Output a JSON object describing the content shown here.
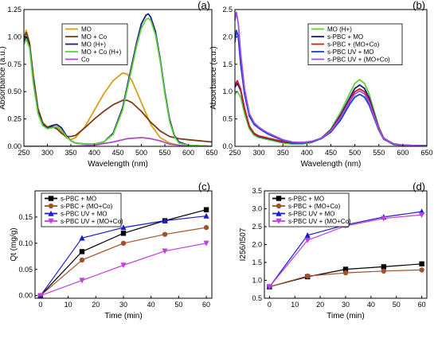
{
  "chart_data": [
    {
      "type": "line",
      "panel_label": "(a)",
      "xlabel": "Wavelength (nm)",
      "ylabel": "Absorbance (a.u.)",
      "xlim": [
        250,
        650
      ],
      "ylim": [
        0,
        1.25
      ],
      "xticks": [
        250,
        300,
        350,
        400,
        450,
        500,
        550,
        600,
        650
      ],
      "yticks": [
        0.0,
        0.25,
        0.5,
        0.75,
        1.0,
        1.25
      ],
      "ytick_labels": [
        "0.00",
        "0.25",
        "0.50",
        "0.75",
        "1.00",
        "1.25"
      ],
      "grid": false,
      "legend_position": "top-left",
      "series": [
        {
          "name": "MO",
          "color": "#d4a017",
          "marker": "none",
          "x": [
            250,
            255,
            262,
            270,
            280,
            290,
            300,
            310,
            320,
            330,
            340,
            350,
            360,
            380,
            400,
            420,
            440,
            460,
            470,
            480,
            500,
            520,
            540,
            560,
            580,
            600,
            650
          ],
          "y": [
            1.0,
            1.06,
            0.95,
            0.65,
            0.35,
            0.22,
            0.18,
            0.19,
            0.17,
            0.13,
            0.08,
            0.06,
            0.08,
            0.18,
            0.33,
            0.48,
            0.6,
            0.67,
            0.66,
            0.6,
            0.4,
            0.2,
            0.08,
            0.03,
            0.01,
            0.0,
            0.0
          ]
        },
        {
          "name": "MO + Co",
          "color": "#7a3b1e",
          "marker": "none",
          "x": [
            250,
            255,
            262,
            270,
            280,
            290,
            300,
            310,
            320,
            330,
            340,
            350,
            360,
            380,
            400,
            420,
            440,
            460,
            470,
            480,
            500,
            520,
            540,
            560,
            580,
            600,
            650
          ],
          "y": [
            0.98,
            1.04,
            0.94,
            0.64,
            0.34,
            0.21,
            0.17,
            0.18,
            0.16,
            0.12,
            0.09,
            0.09,
            0.1,
            0.17,
            0.25,
            0.32,
            0.38,
            0.42,
            0.42,
            0.4,
            0.32,
            0.22,
            0.14,
            0.09,
            0.07,
            0.06,
            0.04
          ]
        },
        {
          "name": "MO (H+)",
          "color": "#1a1a8c",
          "marker": "none",
          "x": [
            250,
            255,
            262,
            270,
            280,
            290,
            300,
            310,
            320,
            330,
            340,
            350,
            360,
            380,
            400,
            420,
            440,
            460,
            480,
            490,
            500,
            510,
            515,
            520,
            530,
            540,
            550,
            560,
            570,
            580,
            600,
            650
          ],
          "y": [
            0.95,
            1.0,
            0.92,
            0.6,
            0.32,
            0.2,
            0.17,
            0.19,
            0.2,
            0.17,
            0.1,
            0.05,
            0.03,
            0.02,
            0.02,
            0.04,
            0.12,
            0.35,
            0.75,
            0.95,
            1.12,
            1.2,
            1.21,
            1.18,
            1.05,
            0.8,
            0.5,
            0.25,
            0.1,
            0.04,
            0.01,
            0.0
          ]
        },
        {
          "name": "MO + Co (H+)",
          "color": "#5dcf3c",
          "marker": "none",
          "x": [
            250,
            255,
            262,
            270,
            280,
            290,
            300,
            310,
            320,
            330,
            340,
            350,
            360,
            380,
            400,
            420,
            440,
            460,
            480,
            490,
            500,
            510,
            515,
            520,
            530,
            540,
            550,
            560,
            570,
            580,
            600,
            650
          ],
          "y": [
            0.93,
            0.98,
            0.9,
            0.58,
            0.3,
            0.19,
            0.16,
            0.17,
            0.18,
            0.15,
            0.09,
            0.05,
            0.03,
            0.02,
            0.02,
            0.04,
            0.11,
            0.33,
            0.72,
            0.92,
            1.08,
            1.16,
            1.17,
            1.15,
            1.02,
            0.78,
            0.48,
            0.23,
            0.09,
            0.03,
            0.01,
            0.0
          ]
        },
        {
          "name": "Co",
          "color": "#b04cc8",
          "marker": "none",
          "x": [
            250,
            300,
            350,
            400,
            440,
            470,
            500,
            520,
            540,
            560,
            580,
            600,
            650
          ],
          "y": [
            0.0,
            0.0,
            0.0,
            0.01,
            0.04,
            0.07,
            0.08,
            0.07,
            0.05,
            0.02,
            0.01,
            0.0,
            0.0
          ]
        }
      ]
    },
    {
      "type": "line",
      "panel_label": "(b)",
      "xlabel": "Wavelength (nm)",
      "ylabel": "Absorbance (a.u.)",
      "xlim": [
        250,
        650
      ],
      "ylim": [
        0,
        2.5
      ],
      "xticks": [
        250,
        300,
        350,
        400,
        450,
        500,
        550,
        600,
        650
      ],
      "yticks": [
        0.0,
        0.5,
        1.0,
        1.5,
        2.0,
        2.5
      ],
      "ytick_labels": [
        "0.0",
        "0.5",
        "1.0",
        "1.5",
        "2.0",
        "2.5"
      ],
      "grid": false,
      "legend_position": "top-right",
      "series": [
        {
          "name": "MO (H+)",
          "color": "#5dcf3c",
          "marker": "none",
          "x": [
            250,
            255,
            262,
            270,
            280,
            290,
            300,
            310,
            320,
            330,
            350,
            370,
            390,
            410,
            430,
            450,
            470,
            490,
            500,
            510,
            520,
            530,
            540,
            550,
            560,
            580,
            600,
            650
          ],
          "y": [
            0.95,
            1.0,
            0.9,
            0.6,
            0.32,
            0.2,
            0.16,
            0.14,
            0.12,
            0.1,
            0.06,
            0.04,
            0.04,
            0.07,
            0.15,
            0.32,
            0.62,
            0.98,
            1.15,
            1.22,
            1.15,
            0.95,
            0.65,
            0.35,
            0.15,
            0.03,
            0.01,
            0.0
          ]
        },
        {
          "name": "s-PBC + MO",
          "color": "#1a1a8c",
          "marker": "none",
          "x": [
            250,
            255,
            262,
            270,
            280,
            290,
            300,
            310,
            320,
            330,
            350,
            370,
            390,
            410,
            430,
            450,
            470,
            490,
            500,
            510,
            520,
            530,
            540,
            550,
            560,
            580,
            600,
            650
          ],
          "y": [
            1.08,
            1.15,
            1.02,
            0.68,
            0.36,
            0.23,
            0.18,
            0.16,
            0.14,
            0.12,
            0.08,
            0.06,
            0.06,
            0.08,
            0.15,
            0.3,
            0.57,
            0.9,
            1.06,
            1.12,
            1.06,
            0.88,
            0.6,
            0.33,
            0.15,
            0.04,
            0.02,
            0.01
          ]
        },
        {
          "name": "s-PBC + (MO+Co)",
          "color": "#d02020",
          "marker": "none",
          "x": [
            250,
            255,
            262,
            270,
            280,
            290,
            300,
            310,
            320,
            330,
            350,
            370,
            390,
            410,
            430,
            450,
            470,
            490,
            500,
            510,
            520,
            530,
            540,
            550,
            560,
            580,
            600,
            650
          ],
          "y": [
            1.12,
            1.2,
            1.05,
            0.7,
            0.37,
            0.24,
            0.19,
            0.17,
            0.15,
            0.13,
            0.09,
            0.07,
            0.07,
            0.09,
            0.15,
            0.29,
            0.54,
            0.86,
            1.0,
            1.05,
            1.0,
            0.83,
            0.57,
            0.32,
            0.15,
            0.05,
            0.02,
            0.01
          ]
        },
        {
          "name": "s-PBC UV + MO",
          "color": "#1a3ad8",
          "marker": "none",
          "x": [
            250,
            253,
            257,
            262,
            270,
            280,
            290,
            300,
            310,
            320,
            330,
            350,
            370,
            390,
            410,
            430,
            450,
            470,
            490,
            500,
            510,
            520,
            530,
            540,
            550,
            560,
            580,
            600,
            650
          ],
          "y": [
            1.9,
            2.12,
            2.0,
            1.5,
            0.95,
            0.55,
            0.4,
            0.33,
            0.27,
            0.22,
            0.18,
            0.11,
            0.07,
            0.06,
            0.08,
            0.14,
            0.26,
            0.48,
            0.78,
            0.9,
            0.95,
            0.9,
            0.75,
            0.52,
            0.29,
            0.13,
            0.04,
            0.02,
            0.01
          ]
        },
        {
          "name": "s-PBC UV + (MO+Co)",
          "color": "#a050e0",
          "marker": "none",
          "x": [
            250,
            253,
            257,
            262,
            270,
            280,
            290,
            300,
            310,
            320,
            330,
            350,
            370,
            390,
            410,
            430,
            450,
            470,
            490,
            500,
            510,
            520,
            530,
            540,
            550,
            560,
            580,
            600,
            650
          ],
          "y": [
            2.3,
            2.45,
            2.25,
            1.7,
            1.05,
            0.6,
            0.43,
            0.35,
            0.29,
            0.24,
            0.2,
            0.12,
            0.08,
            0.07,
            0.09,
            0.15,
            0.28,
            0.52,
            0.83,
            0.96,
            1.01,
            0.96,
            0.8,
            0.55,
            0.31,
            0.14,
            0.05,
            0.02,
            0.01
          ]
        }
      ]
    },
    {
      "type": "line",
      "panel_label": "(c)",
      "xlabel": "Time (min)",
      "ylabel": "Qt (mg/g)",
      "xlim": [
        -2,
        62
      ],
      "ylim": [
        -0.005,
        0.2
      ],
      "xticks": [
        0,
        10,
        20,
        30,
        40,
        50,
        60
      ],
      "yticks": [
        0.0,
        0.05,
        0.1,
        0.15
      ],
      "ytick_labels": [
        "0.00",
        "0.05",
        "0.10",
        "0.15"
      ],
      "grid": false,
      "legend_position": "top-left",
      "series": [
        {
          "name": "s-PBC + MO",
          "color": "#000000",
          "marker": "square",
          "x": [
            0,
            15,
            30,
            45,
            60
          ],
          "y": [
            0.0,
            0.084,
            0.119,
            0.143,
            0.164
          ]
        },
        {
          "name": "s-PBC + (MO+Co)",
          "color": "#a0522d",
          "marker": "circle",
          "x": [
            0,
            15,
            30,
            45,
            60
          ],
          "y": [
            0.0,
            0.068,
            0.1,
            0.117,
            0.13
          ]
        },
        {
          "name": "s-PBC UV + MO",
          "color": "#1a1ad0",
          "marker": "triangle-up",
          "x": [
            0,
            15,
            30,
            45,
            60
          ],
          "y": [
            0.0,
            0.11,
            0.13,
            0.143,
            0.152
          ]
        },
        {
          "name": "s-PBC UV + (MO+Co)",
          "color": "#c040e0",
          "marker": "triangle-down",
          "x": [
            0,
            15,
            30,
            45,
            60
          ],
          "y": [
            0.0,
            0.029,
            0.058,
            0.085,
            0.1
          ]
        }
      ]
    },
    {
      "type": "line",
      "panel_label": "(d)",
      "xlabel": "Time (min)",
      "ylabel": "I256/I507",
      "xlim": [
        -2,
        62
      ],
      "ylim": [
        0.5,
        3.5
      ],
      "xticks": [
        0,
        10,
        20,
        30,
        40,
        50,
        60
      ],
      "yticks": [
        0.5,
        1.0,
        1.5,
        2.0,
        2.5,
        3.0,
        3.5
      ],
      "ytick_labels": [
        "0.5",
        "1.0",
        "1.5",
        "2.0",
        "2.5",
        "3.0",
        "3.5"
      ],
      "grid": false,
      "legend_position": "top-left",
      "series": [
        {
          "name": "s-PBC + MO",
          "color": "#000000",
          "marker": "square",
          "x": [
            0,
            15,
            30,
            45,
            60
          ],
          "y": [
            0.82,
            1.1,
            1.31,
            1.38,
            1.46
          ]
        },
        {
          "name": "s-PBC + (MO+Co)",
          "color": "#a0522d",
          "marker": "circle",
          "x": [
            0,
            15,
            30,
            45,
            60
          ],
          "y": [
            0.82,
            1.12,
            1.21,
            1.26,
            1.29
          ]
        },
        {
          "name": "s-PBC UV + MO",
          "color": "#1a1ad0",
          "marker": "triangle-up",
          "x": [
            0,
            15,
            30,
            45,
            60
          ],
          "y": [
            0.82,
            2.26,
            2.55,
            2.77,
            2.92
          ]
        },
        {
          "name": "s-PBC UV + (MO+Co)",
          "color": "#c040e0",
          "marker": "triangle-down",
          "x": [
            0,
            15,
            30,
            45,
            60
          ],
          "y": [
            0.82,
            2.12,
            2.52,
            2.73,
            2.83
          ]
        }
      ]
    }
  ]
}
